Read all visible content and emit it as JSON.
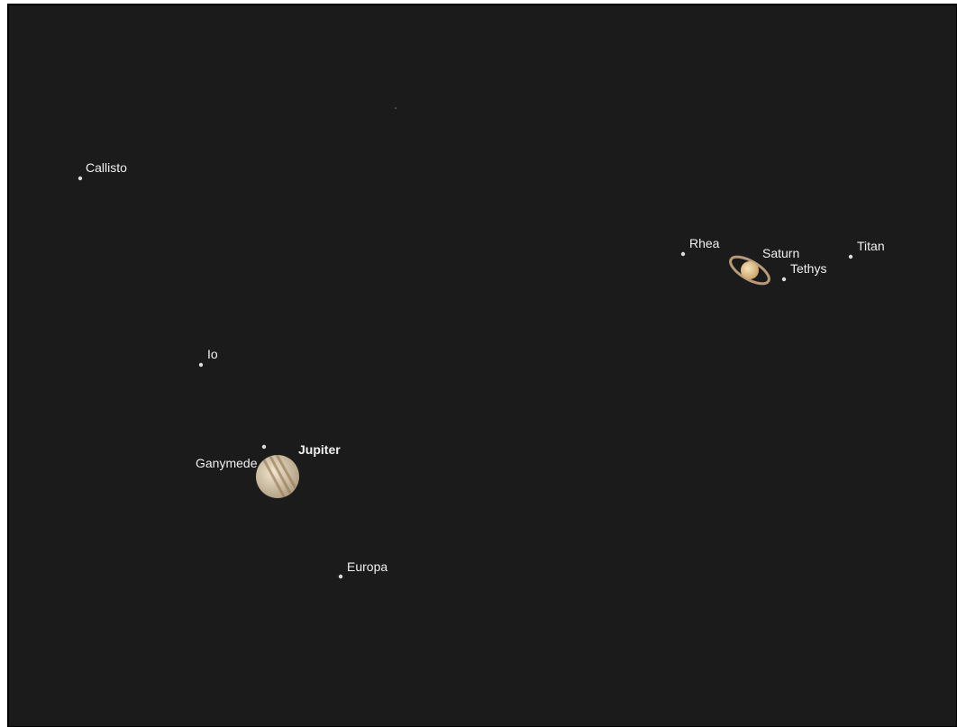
{
  "objects": [
    {
      "label": "Callisto"
    },
    {
      "label": "Io"
    },
    {
      "label": "Ganymede"
    },
    {
      "label": "Jupiter"
    },
    {
      "label": "Europa"
    },
    {
      "label": "Rhea"
    },
    {
      "label": "Saturn"
    },
    {
      "label": "Tethys"
    },
    {
      "label": "Titan"
    }
  ]
}
